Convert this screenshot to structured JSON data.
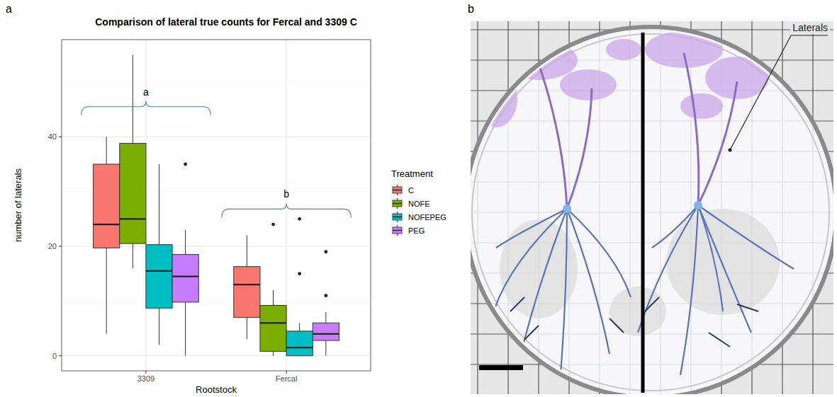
{
  "chart_data": {
    "type": "box",
    "panel": "a",
    "title": "Comparison of lateral true counts for Fercal and 3309 C",
    "x_label": "Rootstock",
    "y_label": "number of laterals",
    "categories": [
      "3309",
      "Fercal"
    ],
    "ylim": [
      -2.75,
      57.75
    ],
    "yticks": [
      0,
      20,
      40
    ],
    "y_minor_ticks": [
      10,
      30,
      50
    ],
    "grid": true,
    "legend": "right",
    "legend_title": "Treatment",
    "series": [
      {
        "name": "C",
        "color": "#F8766D",
        "values": [
          {
            "min": 4,
            "q1": 19.7,
            "median": 24,
            "q3": 35,
            "max": 40,
            "outliers": []
          },
          {
            "min": 3,
            "q1": 7,
            "median": 13,
            "q3": 16.3,
            "max": 22,
            "outliers": []
          }
        ]
      },
      {
        "name": "NOFE",
        "color": "#7CAE00",
        "values": [
          {
            "min": 16,
            "q1": 20.5,
            "median": 25,
            "q3": 38.8,
            "max": 55,
            "outliers": []
          },
          {
            "min": 0,
            "q1": 0.8,
            "median": 6,
            "q3": 9.2,
            "max": 12,
            "outliers": [
              24
            ]
          }
        ]
      },
      {
        "name": "NOFEPEG",
        "color": "#00BFC4",
        "values": [
          {
            "min": 2,
            "q1": 8.7,
            "median": 15.5,
            "q3": 20.3,
            "max": 35,
            "outliers": []
          },
          {
            "min": 0,
            "q1": 0,
            "median": 1.5,
            "q3": 4.5,
            "max": 6,
            "outliers": [
              15,
              25
            ]
          }
        ]
      },
      {
        "name": "PEG",
        "color": "#C77CFF",
        "values": [
          {
            "min": 0,
            "q1": 9.8,
            "median": 14.5,
            "q3": 18.5,
            "max": 23,
            "outliers": [
              35
            ]
          },
          {
            "min": 0,
            "q1": 2.8,
            "median": 4,
            "q3": 6,
            "max": 8,
            "outliers": [
              11,
              19
            ]
          }
        ]
      }
    ],
    "annotations": [
      {
        "text": "a",
        "category": "3309",
        "y": 45.5
      },
      {
        "text": "b",
        "category": "Fercal",
        "y": 26.8
      }
    ]
  },
  "photo": {
    "panel": "b",
    "label": "Laterals"
  }
}
